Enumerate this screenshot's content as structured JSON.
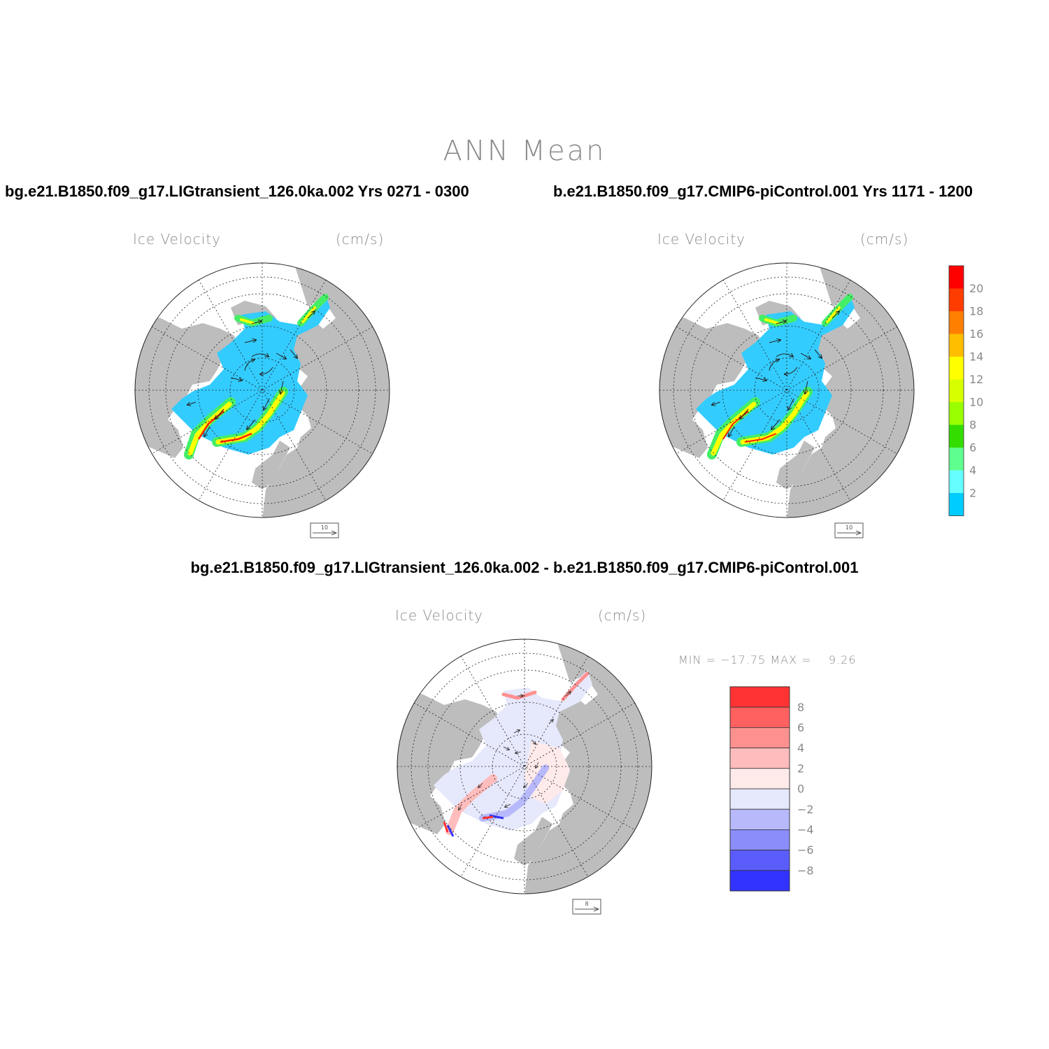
{
  "main_title": "ANN Mean",
  "panels": [
    {
      "case_title": "bg.e21.B1850.f09_g17.LIGtransient_126.0ka.002  Yrs 0271 - 0300",
      "field": "Ice Velocity",
      "units": "(cm/s)",
      "ref_vector": "10"
    },
    {
      "case_title": "b.e21.B1850.f09_g17.CMIP6-piControl.001  Yrs 1171 - 1200",
      "field": "Ice Velocity",
      "units": "(cm/s)",
      "ref_vector": "10"
    },
    {
      "case_title": "bg.e21.B1850.f09_g17.LIGtransient_126.0ka.002 - b.e21.B1850.f09_g17.CMIP6-piControl.001",
      "field": "Ice Velocity",
      "units": "(cm/s)",
      "ref_vector": "8",
      "minmax": "MIN = −17.75 MAX =    9.26"
    }
  ],
  "colorbar_speed": {
    "labels": [
      "20",
      "18",
      "16",
      "14",
      "12",
      "10",
      "8",
      "6",
      "4",
      "2"
    ],
    "colors": [
      "#ff0000",
      "#ff3c00",
      "#ff7f00",
      "#ffbf00",
      "#ffff00",
      "#d8ff00",
      "#99ff00",
      "#33dd00",
      "#5fff8f",
      "#66ffff",
      "#00ccff"
    ]
  },
  "colorbar_diff": {
    "labels": [
      "8",
      "6",
      "4",
      "2",
      "0",
      "−2",
      "−4",
      "−6",
      "−8"
    ],
    "colors": [
      "#ff3333",
      "#ff6060",
      "#ff9090",
      "#ffbcbc",
      "#ffeaea",
      "#e6e8fb",
      "#b7b9fb",
      "#8b8dfb",
      "#5a5cfb",
      "#3333ff"
    ]
  },
  "colors": {
    "land": "#bdbdbd",
    "title_gray": "#8a8a8a",
    "ice_low": "#33ccff",
    "ice_mid": "#44ee66",
    "ice_high": "#ffff00",
    "ice_max": "#ff2200"
  }
}
